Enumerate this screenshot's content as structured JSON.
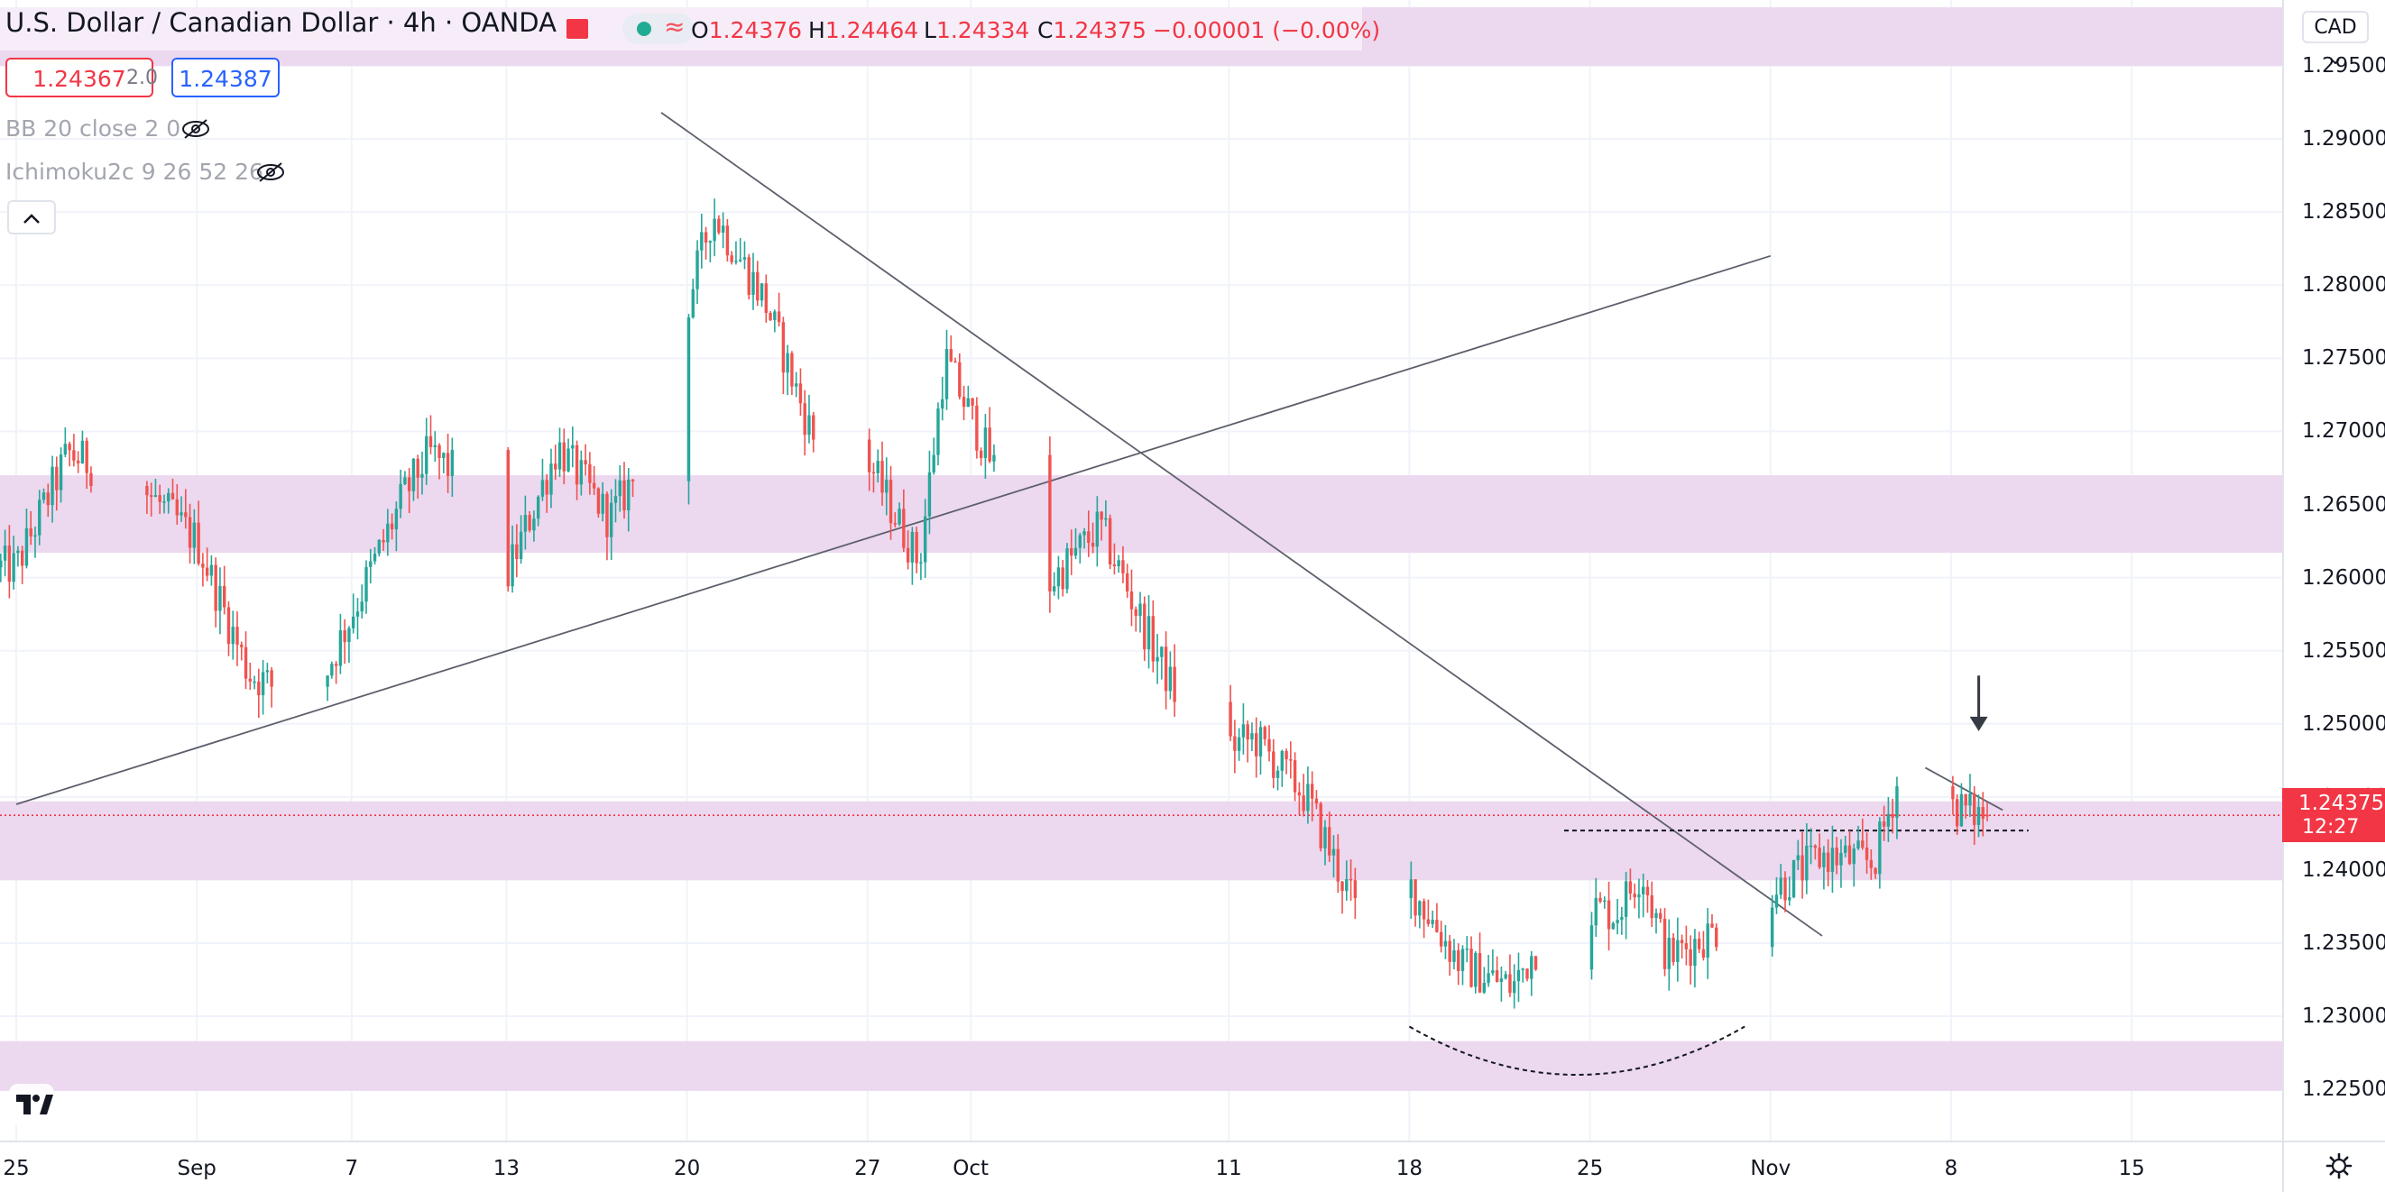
{
  "legend": {
    "symbol_title": "U.S. Dollar / Canadian Dollar",
    "interval": "4h",
    "exchange": "OANDA",
    "open_key": "O",
    "open": "1.24376",
    "high_key": "H",
    "high": "1.24464",
    "low_key": "L",
    "low": "1.24334",
    "close_key": "C",
    "close": "1.24375",
    "change": "−0.00001 (−0.00%)",
    "sell_price": "1.24367",
    "spread": "2.0",
    "buy_price": "1.24387",
    "indicator_bb": "BB 20 close 2 0",
    "indicator_ichimoku": "Ichimoku2c 9 26 52 26"
  },
  "price_scale": {
    "currency_button": "CAD",
    "last_price": "1.24375",
    "countdown": "12:27",
    "ticks": [
      "1.29500",
      "1.29000",
      "1.28500",
      "1.28000",
      "1.27500",
      "1.27000",
      "1.26500",
      "1.26000",
      "1.25500",
      "1.25000",
      "1.24500",
      "1.24000",
      "1.23500",
      "1.23000",
      "1.22500"
    ]
  },
  "time_scale": {
    "labels": [
      "25",
      "Sep",
      "7",
      "13",
      "20",
      "27",
      "Oct",
      "11",
      "18",
      "25",
      "Nov",
      "8",
      "15"
    ]
  },
  "colors": {
    "up": "#26a69a",
    "down": "#ef5350",
    "zone": "#ebd6ee",
    "trendline": "#5d606b",
    "last_price": "#f23645"
  },
  "icons": [
    "flag-icon",
    "market-status-icon",
    "eye-off-icon",
    "chevron-up-icon",
    "tradingview-logo-icon",
    "settings-gear-icon",
    "chevron-down-icon",
    "arrow-down-icon"
  ],
  "chart_data": {
    "type": "candlestick",
    "symbol": "USDCAD",
    "interval": "4h",
    "ylim": [
      1.2215,
      1.2995
    ],
    "grid": true,
    "zones": [
      {
        "from": 1.295,
        "to": 1.299
      },
      {
        "from": 1.2617,
        "to": 1.267
      },
      {
        "from": 1.2393,
        "to": 1.2447
      },
      {
        "from": 1.2249,
        "to": 1.2283
      }
    ],
    "anchors": [
      {
        "date": "2021-08-25",
        "close": 1.2607
      },
      {
        "date": "2021-08-27",
        "close": 1.2685
      },
      {
        "date": "2021-08-30",
        "close": 1.266
      },
      {
        "date": "2021-09-01",
        "close": 1.2625
      },
      {
        "date": "2021-09-03",
        "close": 1.2535
      },
      {
        "date": "2021-09-05",
        "close": 1.2515
      },
      {
        "date": "2021-09-06",
        "close": 1.2535
      },
      {
        "date": "2021-09-09",
        "close": 1.2655
      },
      {
        "date": "2021-09-10",
        "close": 1.2685
      },
      {
        "date": "2021-09-12",
        "close": 1.266
      },
      {
        "date": "2021-09-13",
        "close": 1.26
      },
      {
        "date": "2021-09-15",
        "close": 1.269
      },
      {
        "date": "2021-09-17",
        "close": 1.264
      },
      {
        "date": "2021-09-19",
        "close": 1.27
      },
      {
        "date": "2021-09-20",
        "close": 1.2785
      },
      {
        "date": "2021-09-21",
        "close": 1.285
      },
      {
        "date": "2021-09-23",
        "close": 1.279
      },
      {
        "date": "2021-09-25",
        "close": 1.269
      },
      {
        "date": "2021-09-26",
        "close": 1.264
      },
      {
        "date": "2021-09-27",
        "close": 1.268
      },
      {
        "date": "2021-09-29",
        "close": 1.261
      },
      {
        "date": "2021-09-30",
        "close": 1.275
      },
      {
        "date": "2021-10-01",
        "close": 1.271
      },
      {
        "date": "2021-10-04",
        "close": 1.2595
      },
      {
        "date": "2021-10-06",
        "close": 1.2635
      },
      {
        "date": "2021-10-08",
        "close": 1.2555
      },
      {
        "date": "2021-10-10",
        "close": 1.248
      },
      {
        "date": "2021-10-12",
        "close": 1.249
      },
      {
        "date": "2021-10-14",
        "close": 1.245
      },
      {
        "date": "2021-10-16",
        "close": 1.237
      },
      {
        "date": "2021-10-18",
        "close": 1.239
      },
      {
        "date": "2021-10-20",
        "close": 1.2335
      },
      {
        "date": "2021-10-22",
        "close": 1.232
      },
      {
        "date": "2021-10-24",
        "close": 1.238
      },
      {
        "date": "2021-10-26",
        "close": 1.237
      },
      {
        "date": "2021-10-27",
        "close": 1.24
      },
      {
        "date": "2021-10-28",
        "close": 1.234
      },
      {
        "date": "2021-10-30",
        "close": 1.236
      },
      {
        "date": "2021-11-01",
        "close": 1.2385
      },
      {
        "date": "2021-11-03",
        "close": 1.241
      },
      {
        "date": "2021-11-05",
        "close": 1.2405
      },
      {
        "date": "2021-11-06",
        "close": 1.2465
      },
      {
        "date": "2021-11-08",
        "close": 1.2445
      },
      {
        "date": "2021-11-09",
        "close": 1.2438
      }
    ],
    "last": {
      "open": 1.24376,
      "high": 1.24464,
      "low": 1.24334,
      "close": 1.24375
    },
    "drawings": [
      {
        "type": "trendline",
        "from": {
          "date": "2021-08-25",
          "price": 1.2445
        },
        "to": {
          "date": "2021-11-01",
          "price": 1.282
        }
      },
      {
        "type": "trendline",
        "from": {
          "date": "2021-09-19",
          "price": 1.2918
        },
        "to": {
          "date": "2021-11-03",
          "price": 1.2355
        }
      },
      {
        "type": "trendline",
        "from": {
          "date": "2021-11-07",
          "price": 1.247
        },
        "to": {
          "date": "2021-11-10",
          "price": 1.2441
        }
      },
      {
        "type": "horizontal_dashed",
        "price": 1.2427,
        "from": "2021-10-24",
        "to": "2021-11-11"
      },
      {
        "type": "curve_dashed",
        "from": {
          "date": "2021-10-18",
          "price": 1.2293
        },
        "to": {
          "date": "2021-10-31",
          "price": 1.2293
        },
        "bottom": 1.226
      },
      {
        "type": "arrow_down",
        "date": "2021-11-09",
        "from_price": 1.2533,
        "to_price": 1.2495
      }
    ]
  }
}
